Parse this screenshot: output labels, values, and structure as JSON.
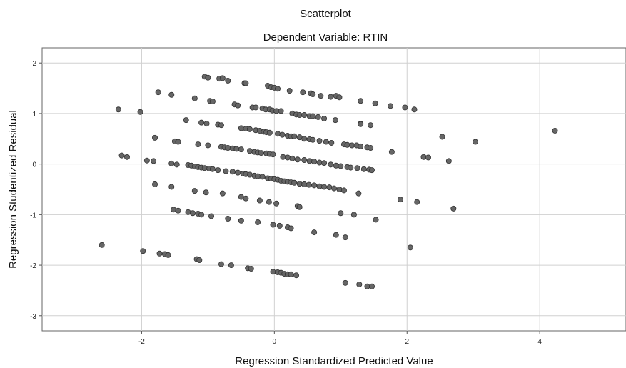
{
  "chart_data": {
    "type": "scatter",
    "title": "Scatterplot",
    "subtitle": "Dependent Variable: RTIN",
    "xlabel": "Regression Standardized Predicted Value",
    "ylabel": "Regression Studentized Residual",
    "xlim": [
      -3.5,
      5.3
    ],
    "ylim": [
      -3.3,
      2.3
    ],
    "xticks": [
      -2,
      0,
      2,
      4
    ],
    "yticks": [
      -3,
      -2,
      -1,
      0,
      1,
      2
    ],
    "grid": true,
    "point_color": "#666666",
    "x": [
      -1.05,
      -1.0,
      -0.83,
      -0.78,
      -0.7,
      -0.45,
      -0.43,
      -0.1,
      -0.05,
      0.0,
      0.05,
      0.23,
      0.43,
      0.55,
      0.58,
      0.7,
      0.85,
      0.93,
      0.98,
      1.3,
      1.52,
      1.75,
      1.97,
      2.11,
      -2.35,
      -2.02,
      -1.75,
      -1.55,
      -1.2,
      -0.97,
      -0.93,
      -0.6,
      -0.55,
      -0.33,
      -0.28,
      -0.18,
      -0.13,
      -0.07,
      -0.03,
      0.03,
      0.1,
      0.27,
      0.33,
      0.38,
      0.45,
      0.53,
      0.58,
      0.66,
      0.75,
      0.92,
      1.3,
      1.45,
      -1.33,
      -1.1,
      -1.02,
      -0.85,
      -0.8,
      -0.5,
      -0.43,
      -0.37,
      -0.28,
      -0.22,
      -0.16,
      -0.12,
      -0.07,
      0.05,
      0.12,
      0.2,
      0.25,
      0.3,
      0.38,
      0.45,
      0.53,
      0.58,
      0.68,
      0.78,
      0.86,
      1.05,
      1.1,
      1.17,
      1.24,
      1.3,
      1.4,
      1.45,
      -1.8,
      -1.5,
      -1.45,
      -1.15,
      -1.0,
      -0.8,
      -0.75,
      -0.7,
      -0.63,
      -0.57,
      -0.5,
      -0.37,
      -0.3,
      -0.25,
      -0.2,
      -0.12,
      -0.07,
      -0.02,
      0.13,
      0.2,
      0.27,
      0.35,
      0.45,
      0.53,
      0.6,
      0.68,
      0.75,
      0.85,
      0.93,
      1.0,
      1.1,
      1.15,
      1.25,
      1.35,
      1.43,
      1.47,
      1.77,
      1.3,
      2.25,
      2.32,
      2.53,
      2.63,
      3.03,
      4.23,
      -2.3,
      -2.22,
      -1.92,
      -1.82,
      -1.55,
      -1.47,
      -1.3,
      -1.25,
      -1.2,
      -1.15,
      -1.1,
      -1.05,
      -0.98,
      -0.93,
      -0.85,
      -0.73,
      -0.63,
      -0.55,
      -0.47,
      -0.43,
      -0.37,
      -0.3,
      -0.25,
      -0.18,
      -0.1,
      -0.05,
      0.0,
      0.05,
      0.1,
      0.15,
      0.2,
      0.25,
      0.3,
      0.38,
      0.45,
      0.52,
      0.6,
      0.68,
      0.75,
      0.83,
      0.9,
      0.98,
      1.05,
      -1.8,
      -1.55,
      -1.2,
      -1.03,
      -0.78,
      -0.5,
      -0.43,
      -0.22,
      -0.08,
      0.03,
      0.35,
      0.38,
      1.27,
      1.9,
      2.15,
      -1.52,
      -1.45,
      -1.3,
      -1.23,
      -1.15,
      -1.1,
      -0.95,
      -0.7,
      -0.5,
      -0.25,
      -0.02,
      0.08,
      0.2,
      0.25,
      0.6,
      0.93,
      1.07,
      1.0,
      1.2,
      1.53,
      2.7,
      -2.6,
      -1.98,
      -1.73,
      -1.65,
      -1.6,
      -1.17,
      -1.13,
      -0.8,
      -0.65,
      -0.4,
      -0.35,
      -0.02,
      0.05,
      0.1,
      0.15,
      0.2,
      0.25,
      0.33,
      2.05,
      1.07,
      1.28,
      1.4,
      1.47
    ],
    "y": [
      1.73,
      1.71,
      1.69,
      1.7,
      1.65,
      1.6,
      1.6,
      1.55,
      1.52,
      1.51,
      1.49,
      1.45,
      1.42,
      1.4,
      1.38,
      1.35,
      1.33,
      1.35,
      1.32,
      1.25,
      1.2,
      1.15,
      1.12,
      1.08,
      1.08,
      1.03,
      1.42,
      1.37,
      1.3,
      1.25,
      1.24,
      1.18,
      1.16,
      1.12,
      1.12,
      1.1,
      1.08,
      1.08,
      1.06,
      1.05,
      1.05,
      1.0,
      0.98,
      0.97,
      0.97,
      0.95,
      0.95,
      0.93,
      0.9,
      0.87,
      0.8,
      0.77,
      0.87,
      0.82,
      0.8,
      0.78,
      0.77,
      0.71,
      0.7,
      0.69,
      0.67,
      0.66,
      0.64,
      0.63,
      0.62,
      0.6,
      0.58,
      0.56,
      0.55,
      0.55,
      0.53,
      0.5,
      0.49,
      0.48,
      0.46,
      0.44,
      0.42,
      0.39,
      0.38,
      0.37,
      0.37,
      0.35,
      0.33,
      0.32,
      0.52,
      0.45,
      0.44,
      0.39,
      0.37,
      0.34,
      0.33,
      0.32,
      0.31,
      0.3,
      0.29,
      0.26,
      0.24,
      0.23,
      0.22,
      0.21,
      0.2,
      0.19,
      0.14,
      0.13,
      0.11,
      0.09,
      0.08,
      0.06,
      0.05,
      0.03,
      0.02,
      -0.01,
      -0.03,
      -0.04,
      -0.06,
      -0.07,
      -0.08,
      -0.1,
      -0.11,
      -0.12,
      0.24,
      0.79,
      0.14,
      0.13,
      0.54,
      0.06,
      0.44,
      0.66,
      0.17,
      0.14,
      0.07,
      0.06,
      0.01,
      -0.01,
      -0.02,
      -0.03,
      -0.05,
      -0.06,
      -0.07,
      -0.08,
      -0.09,
      -0.1,
      -0.12,
      -0.14,
      -0.15,
      -0.17,
      -0.19,
      -0.2,
      -0.21,
      -0.23,
      -0.24,
      -0.25,
      -0.28,
      -0.29,
      -0.3,
      -0.31,
      -0.33,
      -0.34,
      -0.35,
      -0.36,
      -0.37,
      -0.39,
      -0.4,
      -0.41,
      -0.42,
      -0.44,
      -0.45,
      -0.46,
      -0.48,
      -0.5,
      -0.52,
      -0.4,
      -0.45,
      -0.53,
      -0.56,
      -0.58,
      -0.65,
      -0.68,
      -0.72,
      -0.75,
      -0.78,
      -0.83,
      -0.85,
      -0.58,
      -0.7,
      -0.75,
      -0.9,
      -0.92,
      -0.95,
      -0.97,
      -0.98,
      -1.0,
      -1.03,
      -1.08,
      -1.12,
      -1.15,
      -1.2,
      -1.22,
      -1.25,
      -1.27,
      -1.35,
      -1.4,
      -1.45,
      -0.97,
      -1.0,
      -1.1,
      -0.88,
      -1.6,
      -1.72,
      -1.77,
      -1.78,
      -1.8,
      -1.88,
      -1.9,
      -1.98,
      -2.0,
      -2.06,
      -2.07,
      -2.13,
      -2.14,
      -2.15,
      -2.17,
      -2.18,
      -2.18,
      -2.2,
      -1.65,
      -2.35,
      -2.38,
      -2.42,
      -2.42
    ]
  }
}
